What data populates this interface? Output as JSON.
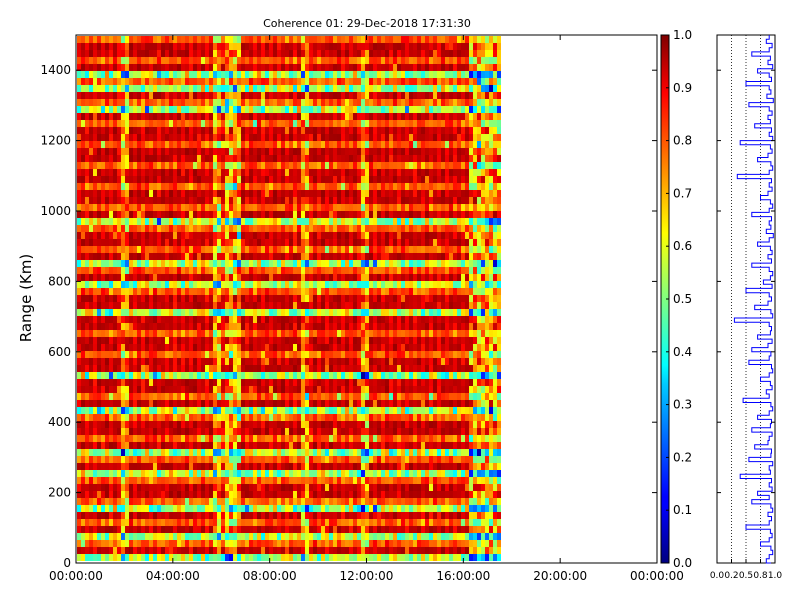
{
  "chart_data": [
    {
      "type": "heatmap",
      "title": "Coherence 01: 29-Dec-2018 17:31:30",
      "ylabel": "Range (Km)",
      "xlabel": "",
      "x_ticks": [
        "00:00:00",
        "04:00:00",
        "08:00:00",
        "12:00:00",
        "16:00:00",
        "20:00:00",
        "00:00:00"
      ],
      "x_range_hours": [
        0,
        24
      ],
      "data_end_hours": 17.5,
      "y_ticks": [
        0,
        200,
        400,
        600,
        800,
        1000,
        1200,
        1400
      ],
      "ylim": [
        0,
        1500
      ],
      "colormap": "jet",
      "value_range": [
        0,
        1
      ],
      "dominant_value": 0.95,
      "bright_columns_hours": [
        1.9,
        5.8,
        6.3,
        6.6,
        9.4,
        11.9,
        16.5,
        16.8,
        17.1
      ],
      "low_coherence_rows_km": [
        20,
        90,
        160,
        260,
        330,
        450,
        540,
        730,
        800,
        855,
        975,
        1090,
        1290,
        1355,
        1400
      ],
      "grid": false
    },
    {
      "type": "colorbar",
      "ticks": [
        "0.0",
        "0.1",
        "0.2",
        "0.3",
        "0.4",
        "0.5",
        "0.6",
        "0.7",
        "0.8",
        "0.9",
        "1.0"
      ],
      "range": [
        0,
        1
      ]
    },
    {
      "type": "line",
      "title": "",
      "x_ticks": [
        "0.0",
        "0.2",
        "0.5",
        "0.8",
        "1.0"
      ],
      "x_tick_values": [
        0,
        0.25,
        0.5,
        0.75,
        1.0
      ],
      "xlim": [
        0,
        1
      ],
      "ylim": [
        0,
        1500
      ],
      "color": "#0000ff",
      "gridlines_x": [
        0.25,
        0.5,
        0.75
      ],
      "profile_range_km": [
        0,
        1500,
        12
      ],
      "profile_values": [
        0.9,
        0.85,
        0.95,
        0.9,
        0.6,
        0.92,
        0.88,
        0.96,
        0.7,
        0.9,
        0.94,
        0.5,
        0.9,
        0.93,
        0.86,
        0.97,
        0.55,
        0.9,
        0.95,
        0.88,
        0.92,
        0.65,
        0.94,
        0.9,
        0.96,
        0.4,
        0.92,
        0.95,
        0.88,
        0.7,
        0.93,
        0.96,
        0.9,
        0.35,
        0.94,
        0.9,
        0.95,
        0.88,
        0.75,
        0.92,
        0.96,
        0.9,
        0.6,
        0.94,
        0.9,
        0.93,
        0.85,
        0.97,
        0.9,
        0.7,
        0.92,
        0.95,
        0.88,
        0.94,
        0.6,
        0.9,
        0.96,
        0.92,
        0.8,
        0.95,
        0.5,
        0.9,
        0.94,
        0.88,
        0.65,
        0.93,
        0.96,
        0.3,
        0.9,
        0.94,
        0.92,
        0.7,
        0.95,
        0.88,
        0.6,
        0.93,
        0.9,
        0.55,
        0.94,
        0.96,
        0.9,
        0.75,
        0.92,
        0.95,
        0.85,
        0.9,
        0.45,
        0.93,
        0.96,
        0.9,
        0.7,
        0.94,
        0.92,
        0.6,
        0.95,
        0.9,
        0.88,
        0.65,
        0.94,
        0.93,
        0.55,
        0.96,
        0.9,
        0.92,
        0.4,
        0.94,
        0.9,
        0.95,
        0.7,
        0.9,
        0.6,
        0.93,
        0.96,
        0.88,
        0.94,
        0.9,
        0.5,
        0.92,
        0.95,
        0.9,
        0.75,
        0.93,
        0.96,
        0.9,
        0.85,
        0.94
      ]
    }
  ]
}
